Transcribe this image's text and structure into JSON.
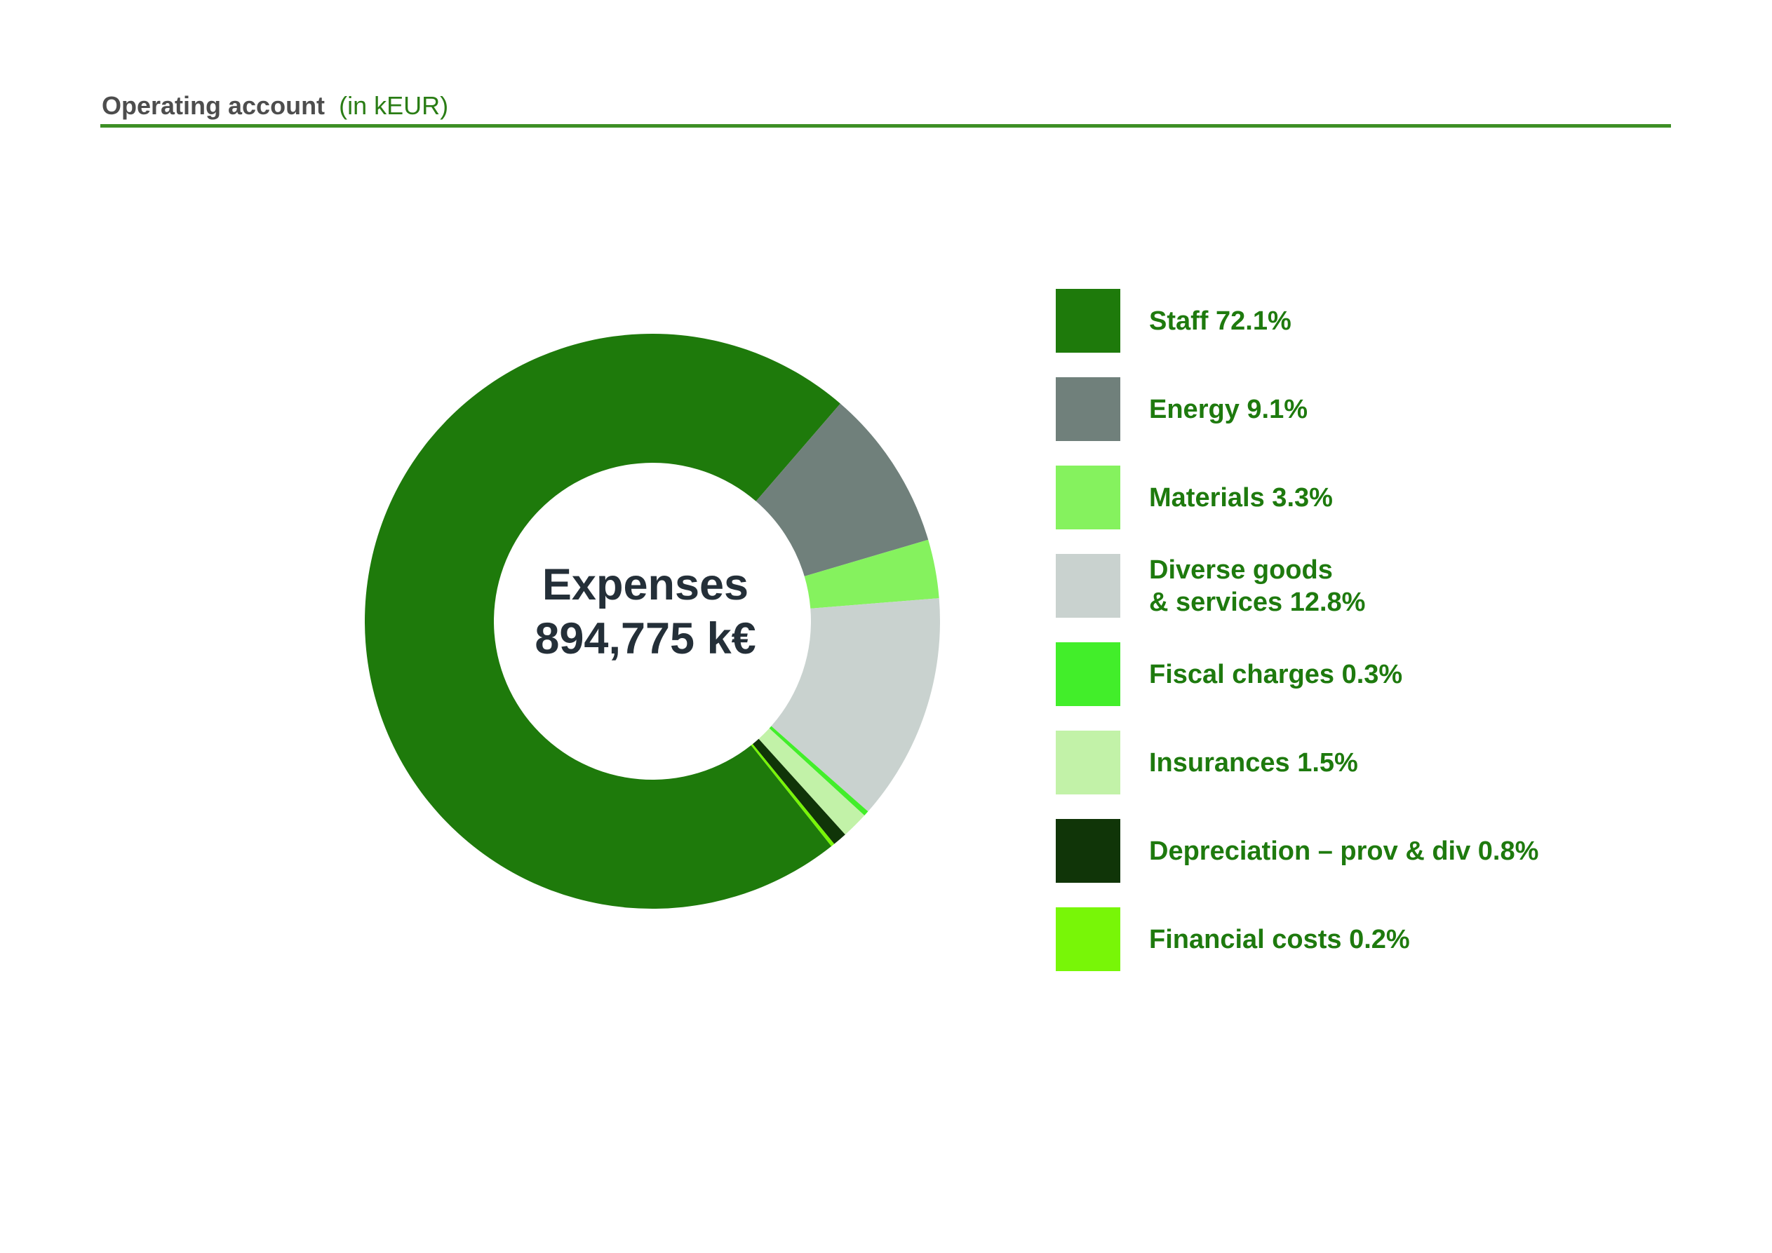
{
  "page": {
    "title": "Operating account",
    "title_unit": "(in kEUR)"
  },
  "colors": {
    "background": "#FFFFFF",
    "title_text": "#4D4D4D",
    "title_unit_text": "#2A7D15",
    "title_rule": "#3D8F26",
    "legend_text": "#1E7A0E",
    "center_text": "#242F38"
  },
  "chart_data": {
    "type": "pie",
    "subtype": "donut",
    "title": "Operating account (in kEUR)",
    "unit": "kEUR",
    "center_label": "Expenses",
    "center_value": "894,775 k€",
    "total_expenses_keur": 894775,
    "start_angle_deg": 141.5,
    "donut_hole_ratio": 0.55,
    "legend_position": "right",
    "legend_swatch_shape": "square",
    "slices": [
      {
        "key": "staff",
        "name": "Staff",
        "label": "Staff 72.1%",
        "pct": 72.1,
        "color": "#1E7A0B"
      },
      {
        "key": "energy",
        "name": "Energy",
        "label": "Energy 9.1%",
        "pct": 9.1,
        "color": "#70807B"
      },
      {
        "key": "materials",
        "name": "Materials",
        "label": "Materials 3.3%",
        "pct": 3.3,
        "color": "#85F25E"
      },
      {
        "key": "diverse-goods-services",
        "name": "Diverse goods & services",
        "label": "Diverse goods\n& services 12.8%",
        "pct": 12.8,
        "color": "#C9D2CF"
      },
      {
        "key": "fiscal-charges",
        "name": "Fiscal charges",
        "label": "Fiscal charges 0.3%",
        "pct": 0.3,
        "color": "#42EE2A"
      },
      {
        "key": "insurances",
        "name": "Insurances",
        "label": "Insurances 1.5%",
        "pct": 1.5,
        "color": "#C2F2A8"
      },
      {
        "key": "depreciation-prov-div",
        "name": "Depreciation – prov & div",
        "label": "Depreciation – prov & div 0.8%",
        "pct": 0.8,
        "color": "#103508"
      },
      {
        "key": "financial-costs",
        "name": "Financial costs",
        "label": "Financial costs 0.2%",
        "pct": 0.2,
        "color": "#78F607"
      }
    ]
  }
}
